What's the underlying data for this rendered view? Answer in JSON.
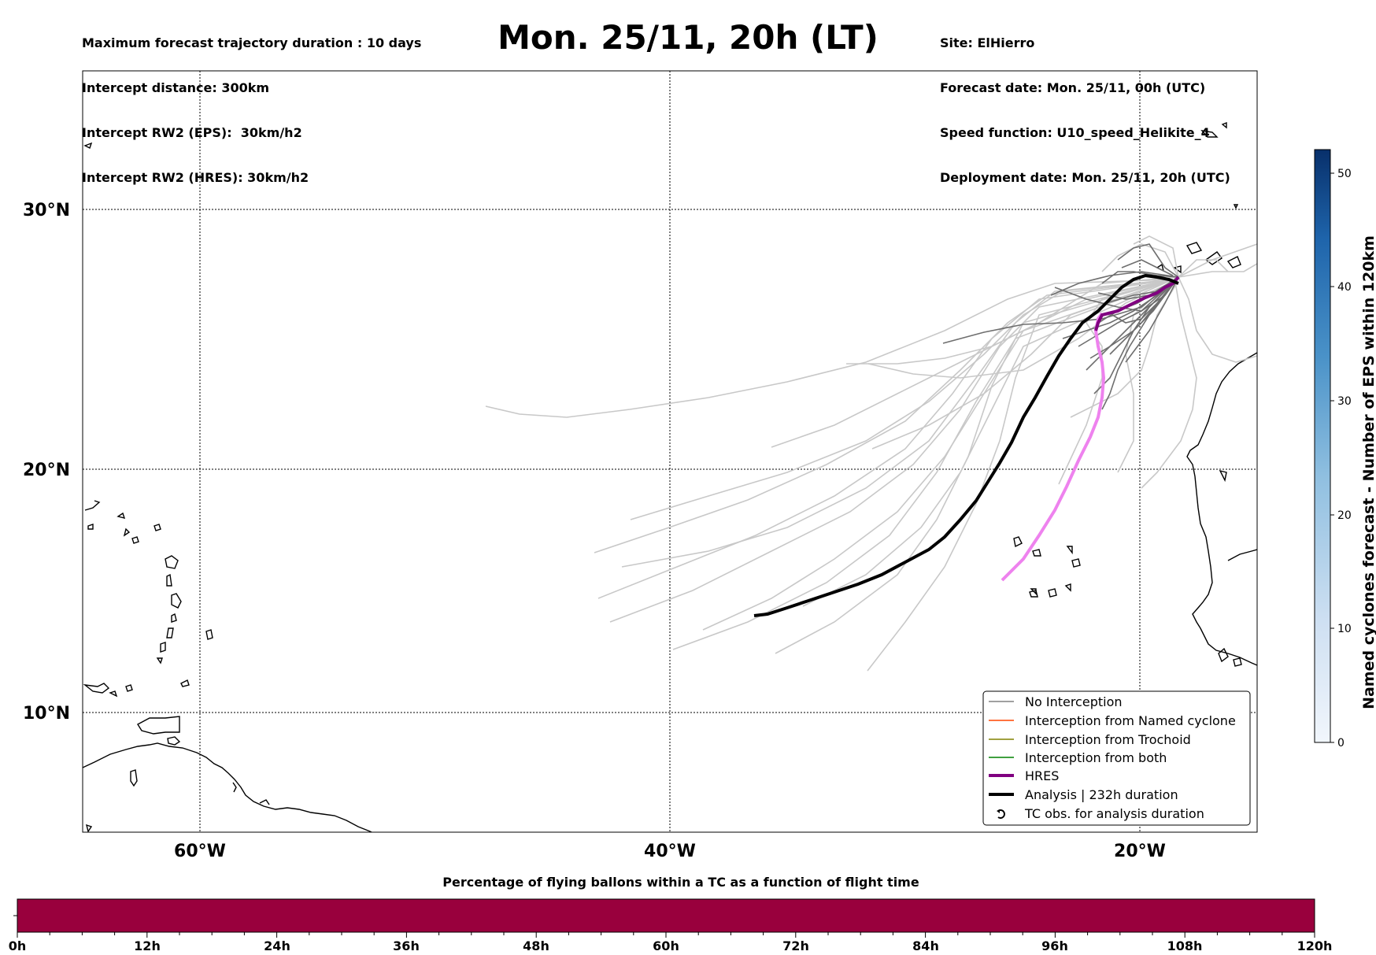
{
  "header": {
    "left_lines": [
      "Maximum forecast trajectory duration : 10 days",
      "Intercept distance: 300km",
      "Intercept RW2 (EPS):  30km/h2",
      "Intercept RW2 (HRES): 30km/h2"
    ],
    "right_lines": [
      "Site: ElHierro",
      "Forecast date: Mon. 25/11, 00h (UTC)",
      "Speed function: U10_speed_Helikite_4",
      "Deployment date: Mon. 25/11, 20h (UTC)"
    ],
    "title": "Mon. 25/11, 20h (LT)"
  },
  "map": {
    "lon_ticks": [
      "60°W",
      "40°W",
      "20°W"
    ],
    "lat_ticks": [
      "30°N",
      "20°N",
      "10°N"
    ],
    "colors": {
      "eps_no_interception_dark": "#6e6e6e",
      "eps_no_interception_light": "#c8c8c8",
      "hres": "#800080",
      "hres_light": "#ee82ee",
      "analysis": "#000000"
    }
  },
  "legend": {
    "items": [
      {
        "label": "No Interception",
        "color": "#808080"
      },
      {
        "label": "Interception from Named cyclone",
        "color": "#ff4500"
      },
      {
        "label": "Interception from Trochoid",
        "color": "#808000"
      },
      {
        "label": "Interception from both",
        "color": "#008000"
      },
      {
        "label": "HRES",
        "color": "#800080"
      },
      {
        "label": "Analysis | 232h duration",
        "color": "#000000"
      },
      {
        "label": "TC obs. for analysis duration",
        "color": "#000000"
      }
    ]
  },
  "colorbar": {
    "label": "Named cyclones forecast - Number of EPS within 120km",
    "ticks": [
      "0",
      "10",
      "20",
      "30",
      "40",
      "50"
    ],
    "min": 0,
    "max": 52
  },
  "timebar": {
    "title": "Percentage of flying ballons within a TC as a function of flight time",
    "ticks": [
      "0h",
      "12h",
      "24h",
      "36h",
      "48h",
      "60h",
      "72h",
      "84h",
      "96h",
      "108h",
      "120h"
    ],
    "color": "#99003d"
  }
}
